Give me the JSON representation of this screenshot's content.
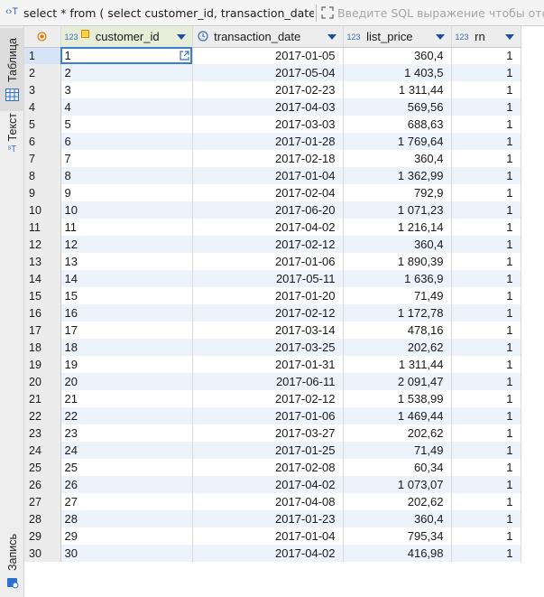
{
  "query_bar": {
    "sql_text": "select * from ( select customer_id, transaction_date,",
    "filter_placeholder": "Введите SQL выражение чтобы отф"
  },
  "side_panel": {
    "tabs": [
      {
        "label": "Таблица",
        "icon": "grid-icon"
      },
      {
        "label": "Текст",
        "icon": "text-icon"
      },
      {
        "label": "Запись",
        "icon": "record-icon"
      }
    ]
  },
  "columns": [
    {
      "name": "customer_id",
      "type_badge": "123",
      "key": true
    },
    {
      "name": "transaction_date",
      "type_badge": "clock"
    },
    {
      "name": "list_price",
      "type_badge": "123"
    },
    {
      "name": "rn",
      "type_badge": "123"
    }
  ],
  "rows": [
    {
      "row": "1",
      "customer_id": "1",
      "transaction_date": "2017-01-05",
      "list_price": "360,4",
      "rn": "1"
    },
    {
      "row": "2",
      "customer_id": "2",
      "transaction_date": "2017-05-04",
      "list_price": "1 403,5",
      "rn": "1"
    },
    {
      "row": "3",
      "customer_id": "3",
      "transaction_date": "2017-02-23",
      "list_price": "1 311,44",
      "rn": "1"
    },
    {
      "row": "4",
      "customer_id": "4",
      "transaction_date": "2017-04-03",
      "list_price": "569,56",
      "rn": "1"
    },
    {
      "row": "5",
      "customer_id": "5",
      "transaction_date": "2017-03-03",
      "list_price": "688,63",
      "rn": "1"
    },
    {
      "row": "6",
      "customer_id": "6",
      "transaction_date": "2017-01-28",
      "list_price": "1 769,64",
      "rn": "1"
    },
    {
      "row": "7",
      "customer_id": "7",
      "transaction_date": "2017-02-18",
      "list_price": "360,4",
      "rn": "1"
    },
    {
      "row": "8",
      "customer_id": "8",
      "transaction_date": "2017-01-04",
      "list_price": "1 362,99",
      "rn": "1"
    },
    {
      "row": "9",
      "customer_id": "9",
      "transaction_date": "2017-02-04",
      "list_price": "792,9",
      "rn": "1"
    },
    {
      "row": "10",
      "customer_id": "10",
      "transaction_date": "2017-06-20",
      "list_price": "1 071,23",
      "rn": "1"
    },
    {
      "row": "11",
      "customer_id": "11",
      "transaction_date": "2017-04-02",
      "list_price": "1 216,14",
      "rn": "1"
    },
    {
      "row": "12",
      "customer_id": "12",
      "transaction_date": "2017-02-12",
      "list_price": "360,4",
      "rn": "1"
    },
    {
      "row": "13",
      "customer_id": "13",
      "transaction_date": "2017-01-06",
      "list_price": "1 890,39",
      "rn": "1"
    },
    {
      "row": "14",
      "customer_id": "14",
      "transaction_date": "2017-05-11",
      "list_price": "1 636,9",
      "rn": "1"
    },
    {
      "row": "15",
      "customer_id": "15",
      "transaction_date": "2017-01-20",
      "list_price": "71,49",
      "rn": "1"
    },
    {
      "row": "16",
      "customer_id": "16",
      "transaction_date": "2017-02-12",
      "list_price": "1 172,78",
      "rn": "1"
    },
    {
      "row": "17",
      "customer_id": "17",
      "transaction_date": "2017-03-14",
      "list_price": "478,16",
      "rn": "1"
    },
    {
      "row": "18",
      "customer_id": "18",
      "transaction_date": "2017-03-25",
      "list_price": "202,62",
      "rn": "1"
    },
    {
      "row": "19",
      "customer_id": "19",
      "transaction_date": "2017-01-31",
      "list_price": "1 311,44",
      "rn": "1"
    },
    {
      "row": "20",
      "customer_id": "20",
      "transaction_date": "2017-06-11",
      "list_price": "2 091,47",
      "rn": "1"
    },
    {
      "row": "21",
      "customer_id": "21",
      "transaction_date": "2017-02-12",
      "list_price": "1 538,99",
      "rn": "1"
    },
    {
      "row": "22",
      "customer_id": "22",
      "transaction_date": "2017-01-06",
      "list_price": "1 469,44",
      "rn": "1"
    },
    {
      "row": "23",
      "customer_id": "23",
      "transaction_date": "2017-03-27",
      "list_price": "202,62",
      "rn": "1"
    },
    {
      "row": "24",
      "customer_id": "24",
      "transaction_date": "2017-01-25",
      "list_price": "71,49",
      "rn": "1"
    },
    {
      "row": "25",
      "customer_id": "25",
      "transaction_date": "2017-02-08",
      "list_price": "60,34",
      "rn": "1"
    },
    {
      "row": "26",
      "customer_id": "26",
      "transaction_date": "2017-04-02",
      "list_price": "1 073,07",
      "rn": "1"
    },
    {
      "row": "27",
      "customer_id": "27",
      "transaction_date": "2017-04-08",
      "list_price": "202,62",
      "rn": "1"
    },
    {
      "row": "28",
      "customer_id": "28",
      "transaction_date": "2017-01-23",
      "list_price": "360,4",
      "rn": "1"
    },
    {
      "row": "29",
      "customer_id": "29",
      "transaction_date": "2017-01-04",
      "list_price": "795,34",
      "rn": "1"
    },
    {
      "row": "30",
      "customer_id": "30",
      "transaction_date": "2017-04-02",
      "list_price": "416,98",
      "rn": "1"
    }
  ],
  "colors": {
    "accent": "#1d4f9c",
    "alt_row": "#edf3fb",
    "focus": "#3c7ed0",
    "sql_keyword": "#2a62b8"
  }
}
